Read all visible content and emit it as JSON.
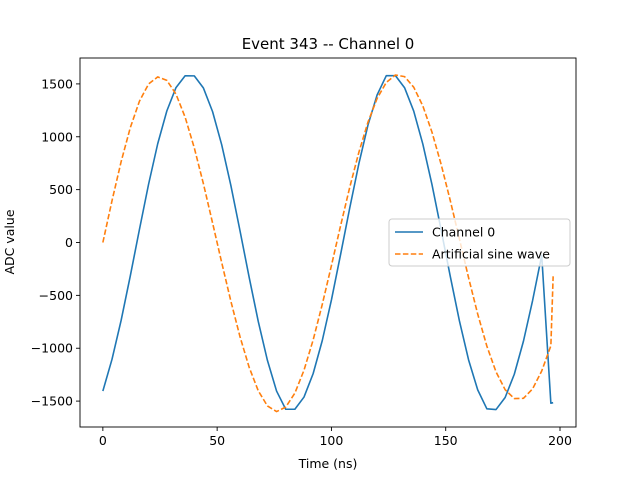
{
  "chart_data": {
    "type": "line",
    "title": "Event 343 -- Channel 0",
    "xlabel": "Time (ns)",
    "ylabel": "ADC value",
    "xlim": [
      -10,
      207
    ],
    "ylim": [
      -1745,
      1745
    ],
    "x_ticks": [
      0,
      50,
      100,
      150,
      200
    ],
    "y_ticks": [
      -1500,
      -1000,
      -500,
      0,
      500,
      1000,
      1500
    ],
    "x_tick_labels": [
      "0",
      "50",
      "100",
      "150",
      "200"
    ],
    "y_tick_labels": [
      "−1500",
      "−1000",
      "−500",
      "0",
      "500",
      "1000",
      "1500"
    ],
    "grid": false,
    "legend_position": "center-right",
    "x": [
      0,
      4,
      8,
      12,
      16,
      20,
      24,
      28,
      32,
      36,
      40,
      44,
      48,
      52,
      56,
      60,
      64,
      68,
      72,
      76,
      80,
      84,
      88,
      92,
      96,
      100,
      104,
      108,
      112,
      116,
      120,
      124,
      128,
      132,
      136,
      140,
      144,
      148,
      152,
      156,
      160,
      164,
      168,
      172,
      176,
      180,
      184,
      188,
      192,
      196,
      197
    ],
    "series": [
      {
        "name": "Channel 0",
        "color": "#1f77b4",
        "style": "solid",
        "values": [
          -1405,
          -1105,
          -736,
          -316,
          123,
          551,
          934,
          1245,
          1465,
          1577,
          1576,
          1461,
          1238,
          924,
          540,
          111,
          -328,
          -748,
          -1115,
          -1405,
          -1577,
          -1577,
          -1462,
          -1240,
          -927,
          -543,
          -114,
          325,
          745,
          1112,
          1396,
          1578,
          1578,
          1464,
          1243,
          930,
          547,
          118,
          -321,
          -742,
          -1110,
          -1394,
          -1573,
          -1580,
          -1466,
          -1246,
          -934,
          -550,
          -121,
          -1520,
          -1515
        ]
      },
      {
        "name": "Artificial sine wave",
        "color": "#ff7f0e",
        "style": "dashed",
        "values": [
          0,
          395,
          765,
          1086,
          1336,
          1499,
          1566,
          1533,
          1403,
          1185,
          895,
          555,
          185,
          -190,
          -555,
          -891,
          -1180,
          -1403,
          -1546,
          -1599,
          -1557,
          -1425,
          -1208,
          -922,
          -585,
          -218,
          158,
          521,
          853,
          1139,
          1363,
          1514,
          1584,
          1569,
          1469,
          1291,
          1043,
          739,
          396,
          33,
          -333,
          -677,
          -980,
          -1223,
          -1392,
          -1476,
          -1474,
          -1385,
          -1215,
          -977,
          -320
        ]
      }
    ]
  }
}
